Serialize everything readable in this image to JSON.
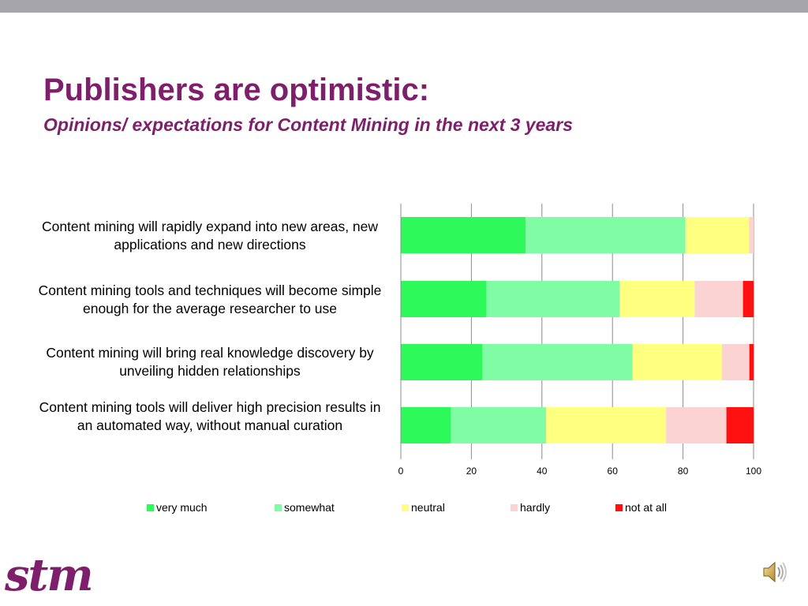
{
  "slide": {
    "title": "Publishers are optimistic:",
    "subtitle": "Opinions/ expectations for Content Mining in the next 3 years",
    "logo_text": "stm",
    "accent_color": "#7d1f6a",
    "speaker_icon": "speaker-icon"
  },
  "chart_data": {
    "type": "bar",
    "orientation": "horizontal",
    "stacked": true,
    "categories": [
      "Content mining will rapidly expand into new areas, new applications and new directions",
      "Content mining tools and techniques will become simple enough for the average researcher to use",
      "Content mining will bring real knowledge discovery by unveiling hidden relationships",
      "Content mining tools will deliver high precision results in an automated way, without manual curation"
    ],
    "series": [
      {
        "name": "very much",
        "color": "#2dfa5a",
        "values": [
          35.4,
          24.3,
          23.1,
          14.1
        ]
      },
      {
        "name": "somewhat",
        "color": "#80fca4",
        "values": [
          45.3,
          37.7,
          42.6,
          27.1
        ]
      },
      {
        "name": "neutral",
        "color": "#ffff80",
        "values": [
          18.0,
          21.3,
          25.3,
          34.0
        ]
      },
      {
        "name": "hardly",
        "color": "#fcd3d3",
        "values": [
          1.3,
          13.7,
          7.8,
          17.1
        ]
      },
      {
        "name": "not at all",
        "color": "#ff1111",
        "values": [
          0.0,
          3.0,
          1.2,
          7.7
        ]
      }
    ],
    "xlim": [
      0,
      100
    ],
    "xticks": [
      0,
      20,
      40,
      60,
      80,
      100
    ],
    "xtick_labels": [
      "0",
      "20",
      "40",
      "60",
      "80",
      "100"
    ],
    "grid": "vertical",
    "legend": "bottom"
  }
}
